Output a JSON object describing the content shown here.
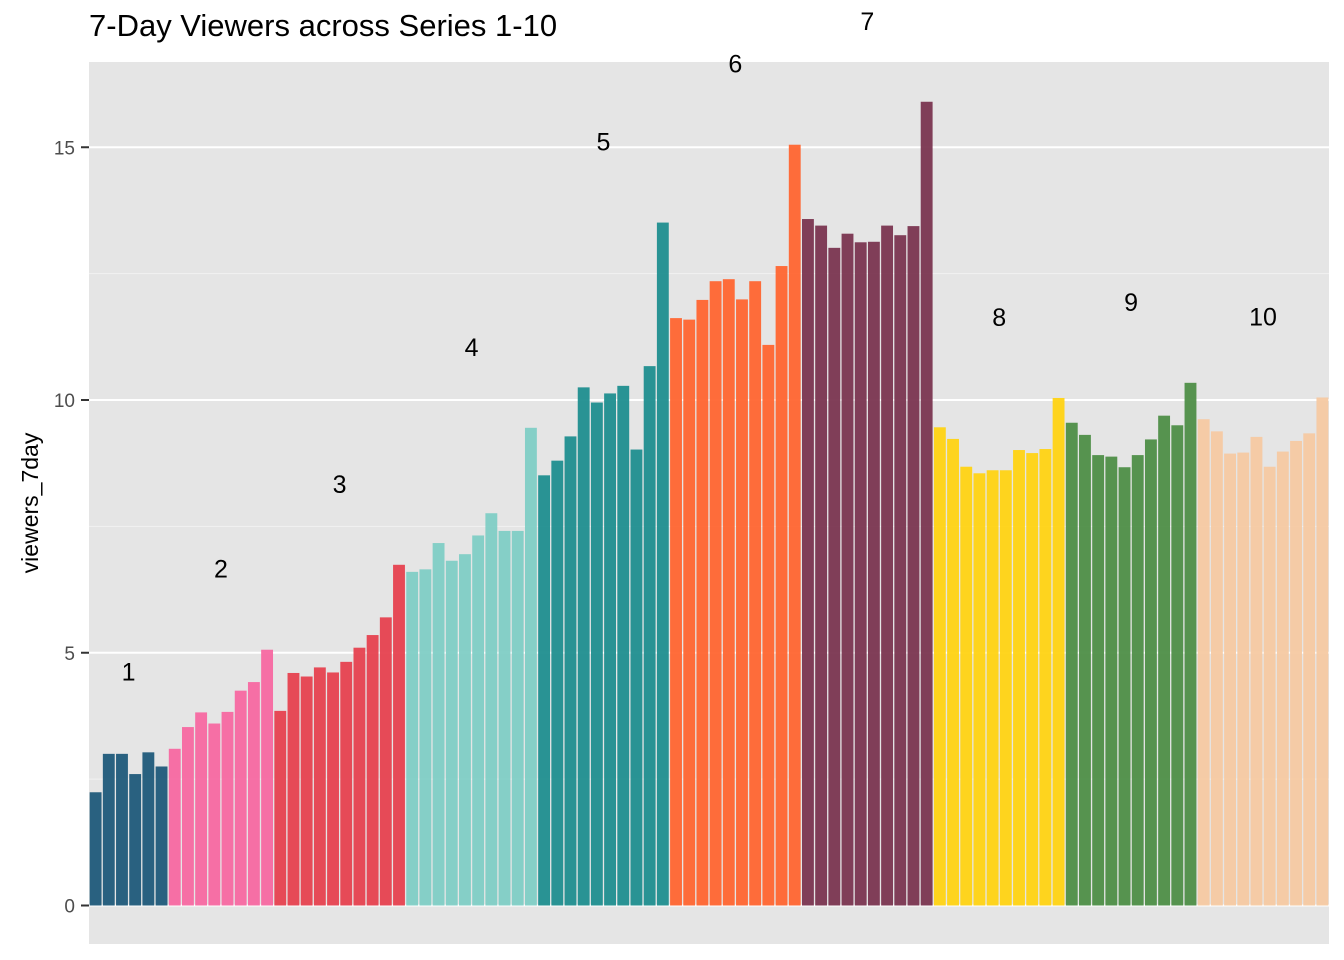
{
  "chart_data": {
    "type": "bar",
    "title": "7-Day Viewers across Series 1-10",
    "xlabel": "",
    "ylabel": "viewers_7day",
    "ylim": [
      0,
      16.5
    ],
    "yticks": [
      0,
      5,
      10,
      15
    ],
    "grid": true,
    "legend": "none",
    "background": "#e5e5e5",
    "series": [
      {
        "name": "1",
        "color": "#1f5a7a",
        "values": [
          2.24,
          3.0,
          3.0,
          2.6,
          3.03,
          2.75
        ]
      },
      {
        "name": "2",
        "color": "#f768a1",
        "values": [
          3.1,
          3.53,
          3.82,
          3.6,
          3.83,
          4.25,
          4.42,
          5.06
        ]
      },
      {
        "name": "3",
        "color": "#e6414f",
        "values": [
          3.85,
          4.6,
          4.53,
          4.71,
          4.61,
          4.82,
          5.1,
          5.35,
          5.7,
          6.74
        ]
      },
      {
        "name": "4",
        "color": "#7fcdc5",
        "values": [
          6.6,
          6.65,
          7.17,
          6.82,
          6.95,
          7.32,
          7.76,
          7.41,
          7.41,
          9.45
        ]
      },
      {
        "name": "5",
        "color": "#1f8e8f",
        "values": [
          8.51,
          8.8,
          9.28,
          10.25,
          9.95,
          10.13,
          10.28,
          9.02,
          10.67,
          13.51
        ]
      },
      {
        "name": "6",
        "color": "#ff6530",
        "values": [
          11.62,
          11.59,
          11.98,
          12.35,
          12.39,
          11.99,
          12.35,
          11.09,
          12.65,
          15.05
        ]
      },
      {
        "name": "7",
        "color": "#7a3550",
        "values": [
          13.58,
          13.45,
          13.01,
          13.29,
          13.12,
          13.13,
          13.45,
          13.26,
          13.44,
          15.9
        ]
      },
      {
        "name": "8",
        "color": "#ffd313",
        "values": [
          9.46,
          9.23,
          8.68,
          8.55,
          8.61,
          8.61,
          9.01,
          8.95,
          9.03,
          10.04
        ]
      },
      {
        "name": "9",
        "color": "#4e8e47",
        "values": [
          9.55,
          9.31,
          8.91,
          8.88,
          8.67,
          8.91,
          9.22,
          9.69,
          9.5,
          10.34
        ]
      },
      {
        "name": "10",
        "color": "#f6c9a2",
        "values": [
          9.62,
          9.38,
          8.94,
          8.96,
          9.27,
          8.68,
          8.98,
          9.19,
          9.34,
          10.05
        ]
      }
    ]
  }
}
